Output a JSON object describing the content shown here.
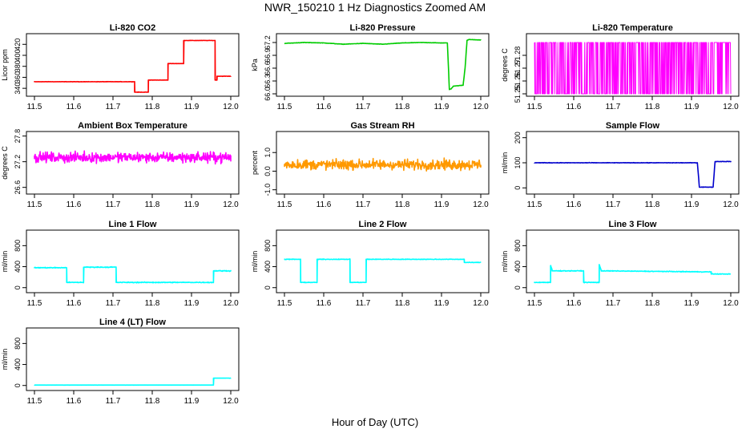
{
  "title": "NWR_150210  1 Hz Diagnostics Zoomed AM",
  "xlabel": "Hour of Day (UTC)",
  "chart_data": [
    {
      "type": "line",
      "title": "Li-820 CO2",
      "ylabel": "Licor ppm",
      "color": "#ff0000",
      "xlim": [
        11.5,
        12.0
      ],
      "xticks": [
        "11.5",
        "11.6",
        "11.7",
        "11.8",
        "11.9",
        "12.0"
      ],
      "ylim": [
        330,
        435
      ],
      "yticks": [
        "340",
        "360",
        "380",
        "400",
        "420"
      ],
      "noise": 0.4,
      "series": [
        {
          "name": "CO2",
          "x": [
            11.5,
            11.755,
            11.755,
            11.79,
            11.79,
            11.84,
            11.84,
            11.88,
            11.88,
            11.96,
            11.96,
            11.965,
            11.965,
            12.0
          ],
          "y": [
            352,
            352,
            333,
            333,
            355,
            355,
            385,
            385,
            427,
            427,
            355,
            355,
            362,
            362
          ]
        }
      ]
    },
    {
      "type": "line",
      "title": "Li-820 Pressure",
      "ylabel": "kPa",
      "color": "#00cc00",
      "xlim": [
        11.5,
        12.0
      ],
      "xticks": [
        "11.5",
        "11.6",
        "11.7",
        "11.8",
        "11.9",
        "12.0"
      ],
      "ylim": [
        66.0,
        67.35
      ],
      "yticks": [
        "66.0",
        "66.3",
        "66.6",
        "66.9",
        "67.2"
      ],
      "noise": 0.006,
      "series": [
        {
          "name": "Pressure",
          "x": [
            11.5,
            11.55,
            11.6,
            11.65,
            11.7,
            11.75,
            11.8,
            11.85,
            11.9,
            11.915,
            11.92,
            11.925,
            11.93,
            11.955,
            11.96,
            11.965,
            11.97,
            11.995,
            12.0
          ],
          "y": [
            67.18,
            67.2,
            67.19,
            67.16,
            67.18,
            67.16,
            67.19,
            67.2,
            67.19,
            67.19,
            66.1,
            66.12,
            66.18,
            66.2,
            66.6,
            67.25,
            67.27,
            67.26,
            67.26
          ]
        }
      ]
    },
    {
      "type": "line",
      "title": "Li-820 Temperature",
      "ylabel": "degrees C",
      "color": "#ff00ff",
      "xlim": [
        11.5,
        12.0
      ],
      "xticks": [
        "11.5",
        "11.6",
        "11.7",
        "11.8",
        "11.9",
        "12.0"
      ],
      "ylim": [
        51.25,
        51.295
      ],
      "yticks": [
        "51.25",
        "51.26",
        "51.27",
        "51.28"
      ],
      "quantized": [
        51.25,
        51.29
      ],
      "series": [
        {
          "name": "Temperature",
          "x": [
            11.5,
            12.0
          ],
          "y": [
            51.25,
            51.29
          ]
        }
      ]
    },
    {
      "type": "line",
      "title": "Ambient Box Temperature",
      "ylabel": "degrees C",
      "color": "#ff00ff",
      "xlim": [
        11.5,
        12.0
      ],
      "xticks": [
        "11.5",
        "11.6",
        "11.7",
        "11.8",
        "11.9",
        "12.0"
      ],
      "ylim": [
        26.5,
        27.85
      ],
      "yticks": [
        "26.6",
        "27.2",
        "27.8"
      ],
      "noise": 0.17,
      "series": [
        {
          "name": "Box Temp",
          "x": [
            11.5,
            12.0
          ],
          "y": [
            27.3,
            27.3
          ]
        }
      ]
    },
    {
      "type": "line",
      "title": "Gas Stream RH",
      "ylabel": "percent",
      "color": "#ff9900",
      "xlim": [
        11.5,
        12.0
      ],
      "xticks": [
        "11.5",
        "11.6",
        "11.7",
        "11.8",
        "11.9",
        "12.0"
      ],
      "ylim": [
        -1.1,
        2.0
      ],
      "yticks": [
        "-1.0",
        "0.0",
        "1.0"
      ],
      "noise": 0.4,
      "series": [
        {
          "name": "RH",
          "x": [
            11.5,
            12.0
          ],
          "y": [
            0.35,
            0.35
          ]
        }
      ]
    },
    {
      "type": "line",
      "title": "Sample Flow",
      "ylabel": "ml/min",
      "color": "#0000cc",
      "xlim": [
        11.5,
        12.0
      ],
      "xticks": [
        "11.5",
        "11.6",
        "11.7",
        "11.8",
        "11.9",
        "12.0"
      ],
      "ylim": [
        -15,
        215
      ],
      "yticks": [
        "0",
        "100",
        "200"
      ],
      "noise": 1.2,
      "series": [
        {
          "name": "Sample Flow",
          "x": [
            11.5,
            11.915,
            11.92,
            11.955,
            11.96,
            12.0
          ],
          "y": [
            100,
            100,
            3,
            3,
            105,
            105
          ]
        }
      ]
    },
    {
      "type": "line",
      "title": "Line 1 Flow",
      "ylabel": "ml/min",
      "color": "#00ffff",
      "xlim": [
        11.5,
        12.0
      ],
      "xticks": [
        "11.5",
        "11.6",
        "11.7",
        "11.8",
        "11.9",
        "12.0"
      ],
      "ylim": [
        -50,
        1050
      ],
      "yticks": [
        "0",
        "400",
        "800"
      ],
      "noise": 12,
      "series": [
        {
          "name": "Line 1",
          "x": [
            11.5,
            11.582,
            11.582,
            11.625,
            11.625,
            11.708,
            11.708,
            11.956,
            11.956,
            12.0
          ],
          "y": [
            380,
            380,
            100,
            100,
            390,
            390,
            100,
            100,
            320,
            320
          ]
        }
      ]
    },
    {
      "type": "line",
      "title": "Line 2 Flow",
      "ylabel": "ml/min",
      "color": "#00ffff",
      "xlim": [
        11.5,
        12.0
      ],
      "xticks": [
        "11.5",
        "11.6",
        "11.7",
        "11.8",
        "11.9",
        "12.0"
      ],
      "ylim": [
        -50,
        1050
      ],
      "yticks": [
        "0",
        "400",
        "800"
      ],
      "noise": 8,
      "series": [
        {
          "name": "Line 2",
          "x": [
            11.5,
            11.541,
            11.541,
            11.583,
            11.583,
            11.667,
            11.667,
            11.708,
            11.708,
            11.958,
            11.958,
            12.0
          ],
          "y": [
            540,
            540,
            100,
            100,
            540,
            540,
            100,
            100,
            540,
            540,
            480,
            480
          ]
        }
      ]
    },
    {
      "type": "line",
      "title": "Line 3 Flow",
      "ylabel": "ml/min",
      "color": "#00ffff",
      "xlim": [
        11.5,
        12.0
      ],
      "xticks": [
        "11.5",
        "11.6",
        "11.7",
        "11.8",
        "11.9",
        "12.0"
      ],
      "ylim": [
        -50,
        1050
      ],
      "yticks": [
        "0",
        "400",
        "800"
      ],
      "noise": 10,
      "series": [
        {
          "name": "Line 3",
          "x": [
            11.5,
            11.541,
            11.541,
            11.545,
            11.545,
            11.625,
            11.625,
            11.665,
            11.665,
            11.67,
            11.67,
            11.95,
            11.95,
            12.0
          ],
          "y": [
            100,
            100,
            420,
            340,
            320,
            320,
            100,
            100,
            440,
            330,
            320,
            300,
            260,
            260
          ]
        }
      ]
    },
    {
      "type": "line",
      "title": "Line 4 (LT) Flow",
      "ylabel": "ml/min",
      "color": "#00ffff",
      "xlim": [
        11.5,
        12.0
      ],
      "xticks": [
        "11.5",
        "11.6",
        "11.7",
        "11.8",
        "11.9",
        "12.0"
      ],
      "ylim": [
        -50,
        1050
      ],
      "yticks": [
        "0",
        "400",
        "800"
      ],
      "noise": 1.5,
      "series": [
        {
          "name": "Line 4",
          "x": [
            11.5,
            11.956,
            11.956,
            12.0
          ],
          "y": [
            8,
            8,
            140,
            140
          ]
        }
      ]
    }
  ]
}
